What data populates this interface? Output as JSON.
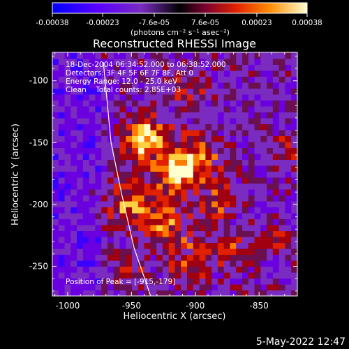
{
  "chart_data": {
    "type": "heatmap",
    "title": "Reconstructed RHESSI Image",
    "colorbar": {
      "ticks": [
        "-0.00038",
        "-0.00023",
        "-7.6e-05",
        "7.6e-05",
        "0.00023",
        "0.00038"
      ],
      "min": -0.00038,
      "max": 0.00038,
      "unit_label": "(photons cm⁻² s⁻¹ asec⁻²)"
    },
    "annotations": [
      "18-Dec-2004 06:34:52.000 to 06:38:52.000",
      "Detectors: 3F 4F 5F 6F 7F 8F, Att 0",
      "Energy Range: 12.0 - 25.0 keV",
      "Clean    Total counts: 2.85E+03"
    ],
    "peak_label": "Position of Peak = [-915,-179]",
    "peak": {
      "x": -915,
      "y": -179
    },
    "xlabel": "Heliocentric X (arcsec)",
    "ylabel": "Heliocentric Y (arcsec)",
    "xlim": [
      -1012,
      -820
    ],
    "ylim": [
      -274,
      -77
    ],
    "xticks": [
      {
        "value": -1000,
        "label": "-1000"
      },
      {
        "value": -950,
        "label": "-950"
      },
      {
        "value": -900,
        "label": "-900"
      },
      {
        "value": -850,
        "label": "-850"
      }
    ],
    "yticks": [
      {
        "value": -100,
        "label": "-100"
      },
      {
        "value": -150,
        "label": "-150"
      },
      {
        "value": -200,
        "label": "-200"
      },
      {
        "value": -250,
        "label": "-250"
      }
    ],
    "limb_curve": [
      {
        "x": -972,
        "y": -85
      },
      {
        "x": -966,
        "y": -150
      },
      {
        "x": -958,
        "y": -190
      },
      {
        "x": -948,
        "y": -235
      },
      {
        "x": -935,
        "y": -274
      }
    ],
    "colormap": {
      "negative": [
        "#0000ff",
        "#3a00ff",
        "#6a00e0",
        "#7a2bc0"
      ],
      "positive": [
        "#6a1050",
        "#a00010",
        "#e02000",
        "#ff7a00",
        "#ffd040",
        "#ffffd0"
      ]
    }
  },
  "footer": {
    "timestamp": "5-May-2022 12:47"
  }
}
